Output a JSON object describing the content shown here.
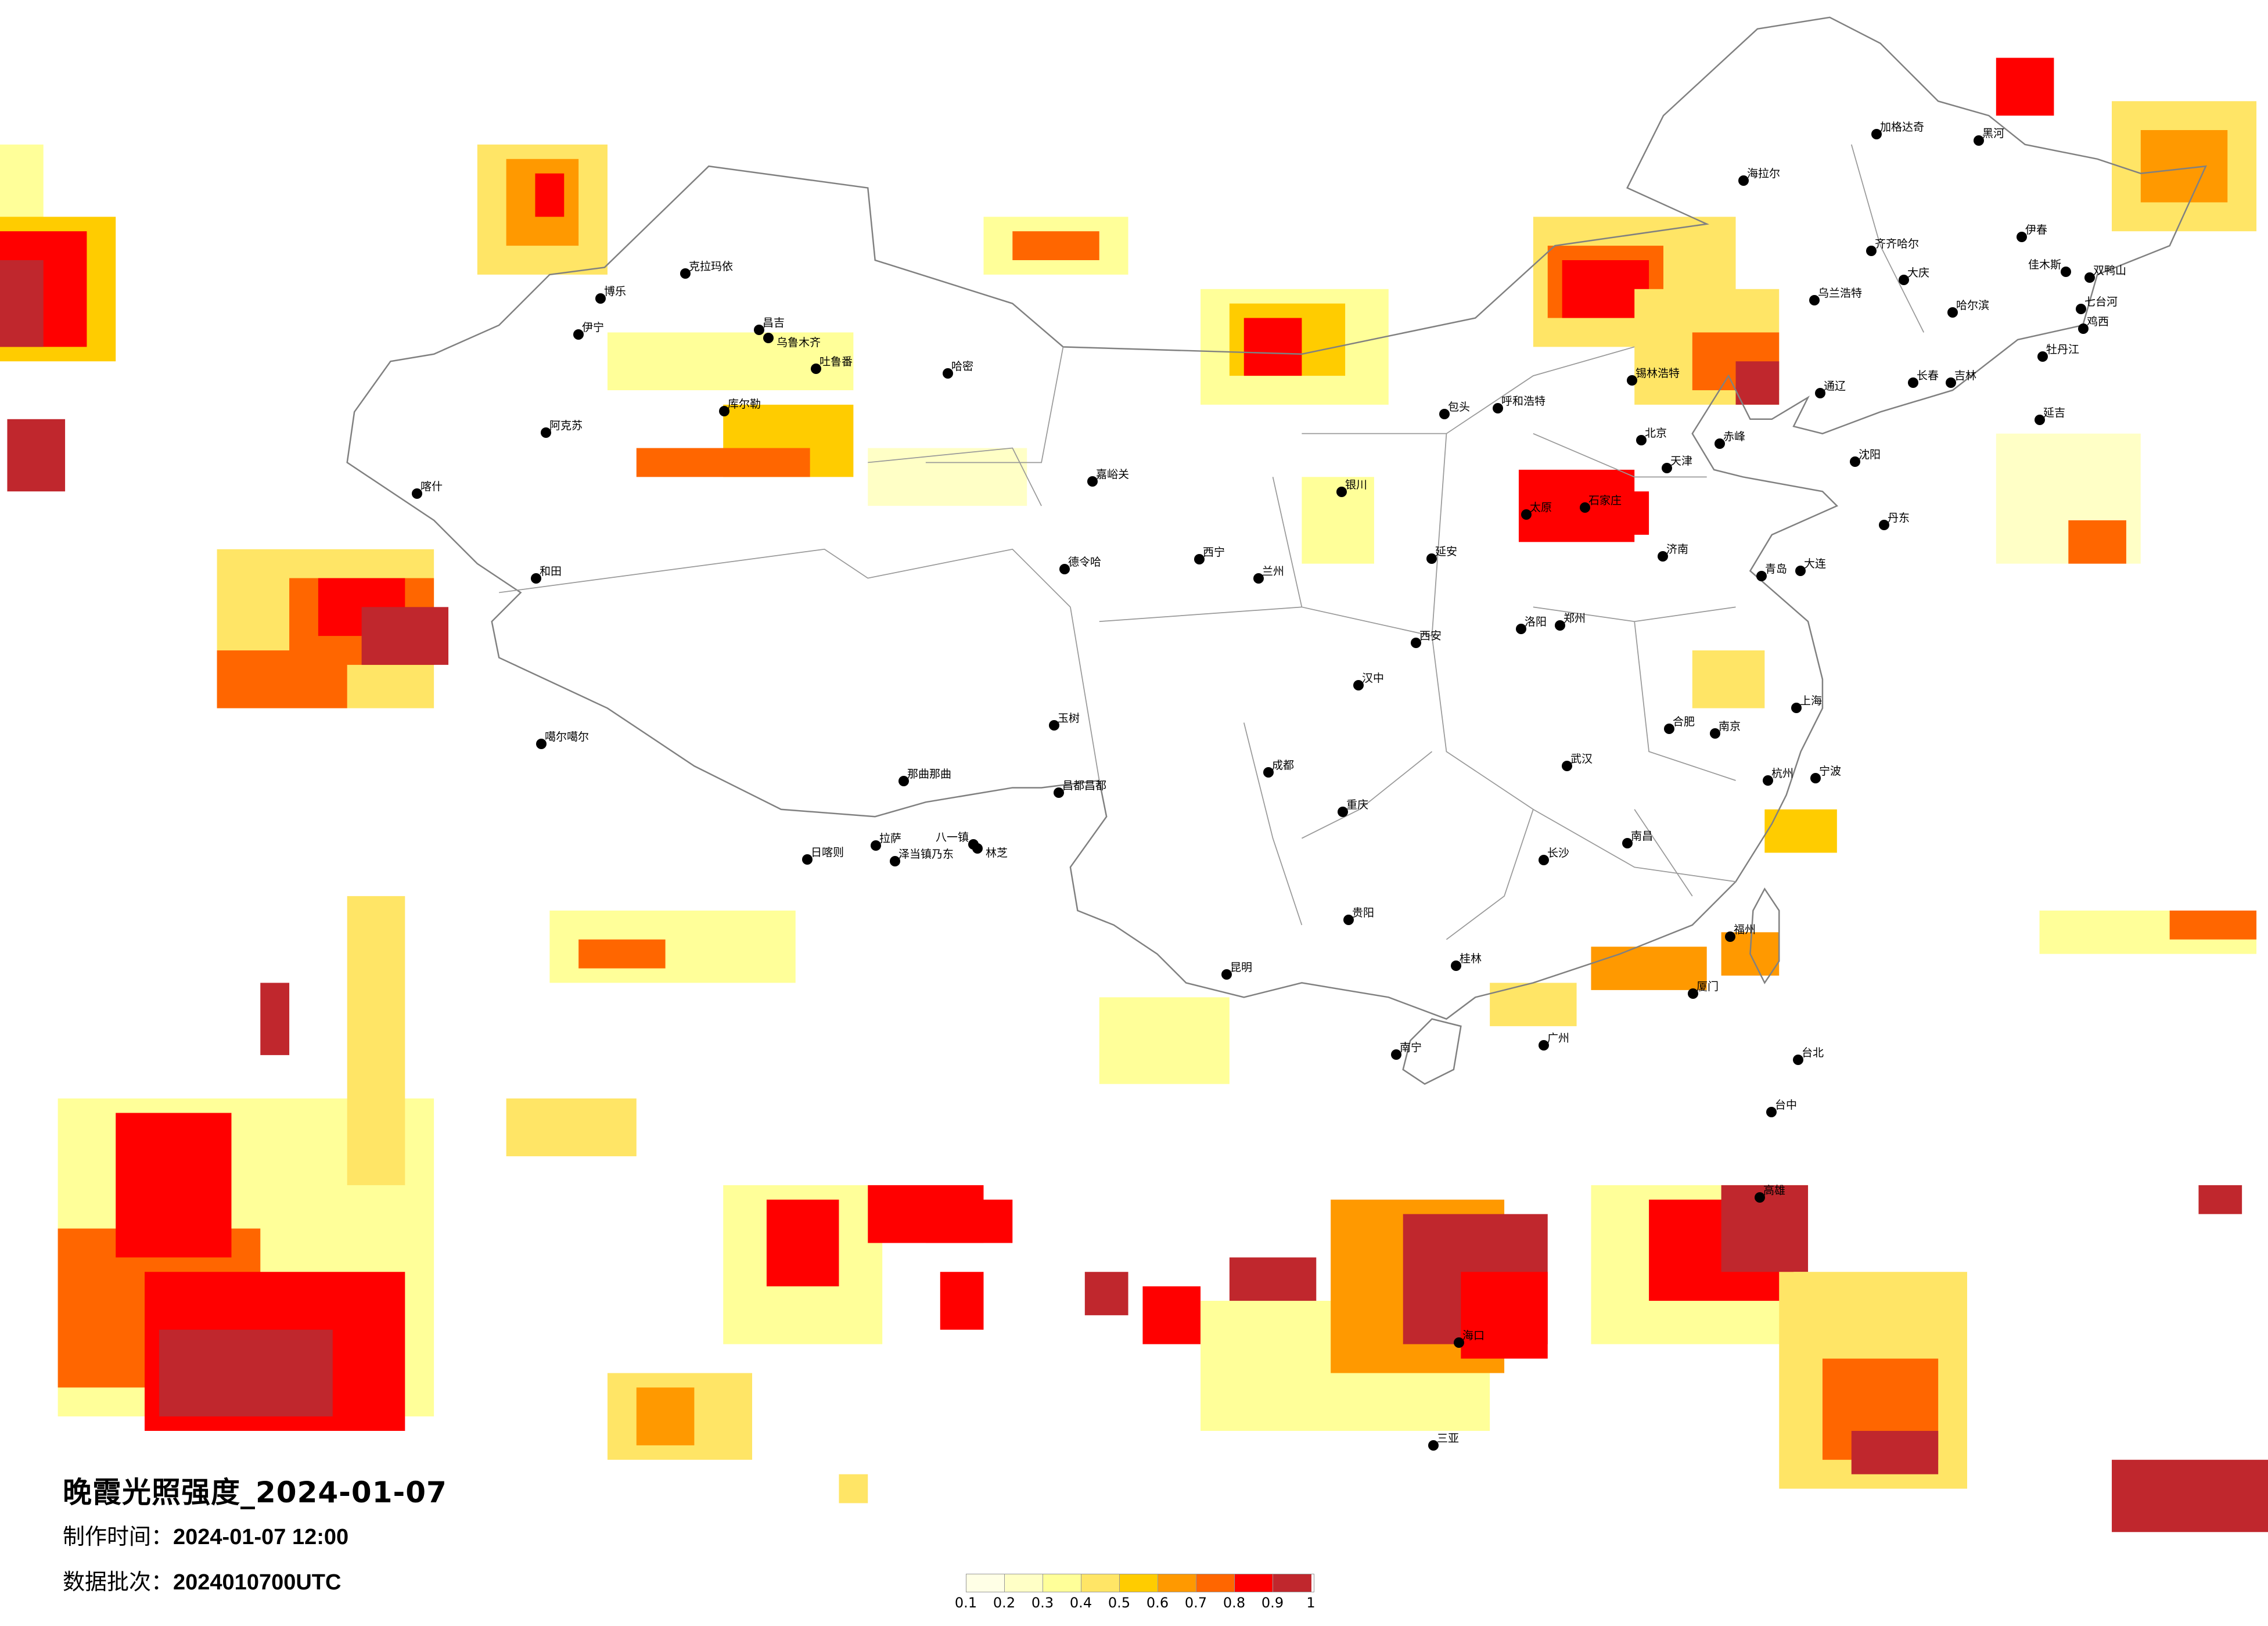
{
  "title": "晚霞光照强度_2024-01-07",
  "meta": {
    "made_label": "制作时间：",
    "made_value": "2024-01-07 12:00",
    "batch_label": "数据批次：",
    "batch_value": "2024010700UTC"
  },
  "legend": {
    "labels": [
      "0.1",
      "0.2",
      "0.3",
      "0.4",
      "0.5",
      "0.6",
      "0.7",
      "0.8",
      "0.9",
      "1"
    ],
    "colors": [
      "#FFFFE6",
      "#FFFFC6",
      "#FFFF99",
      "#FFE566",
      "#FFCC00",
      "#FF9900",
      "#FF6600",
      "#FF0000",
      "#C0272D"
    ]
  },
  "cities": [
    "北京",
    "天津",
    "石家庄",
    "太原",
    "呼和浩特",
    "包头",
    "银川",
    "兰州",
    "西宁",
    "西安",
    "郑州",
    "济南",
    "青岛",
    "南京",
    "合肥",
    "武汉",
    "成都",
    "重庆",
    "长沙",
    "南昌",
    "贵阳",
    "昆明",
    "福州",
    "杭州",
    "南宁",
    "广州",
    "桂林",
    "厦门",
    "台北",
    "台中",
    "高雄",
    "海口",
    "三亚",
    "上海",
    "宁波",
    "洛阳",
    "延安",
    "汉中",
    "拉萨",
    "日喀则",
    "乌鲁木齐",
    "昌吉",
    "吐鲁番",
    "哈密",
    "库尔勒",
    "阿克苏",
    "喀什",
    "和田",
    "伊宁",
    "博乐",
    "克拉玛依",
    "噶尔噶尔",
    "那曲那曲",
    "八一镇",
    "林芝",
    "泽当镇乃东",
    "德令哈",
    "玉树",
    "昌都昌都",
    "嘉峪关",
    "加格达奇",
    "海拉尔",
    "黑河",
    "齐齐哈尔",
    "大庆",
    "哈尔滨",
    "伊春",
    "佳木斯",
    "牡丹江",
    "长春",
    "吉林",
    "沈阳",
    "大连",
    "赤峰",
    "锡林浩特",
    "延吉",
    "丹东",
    "乌兰浩特",
    "通辽",
    "鸡西",
    "双鸭山",
    "七台河"
  ]
}
